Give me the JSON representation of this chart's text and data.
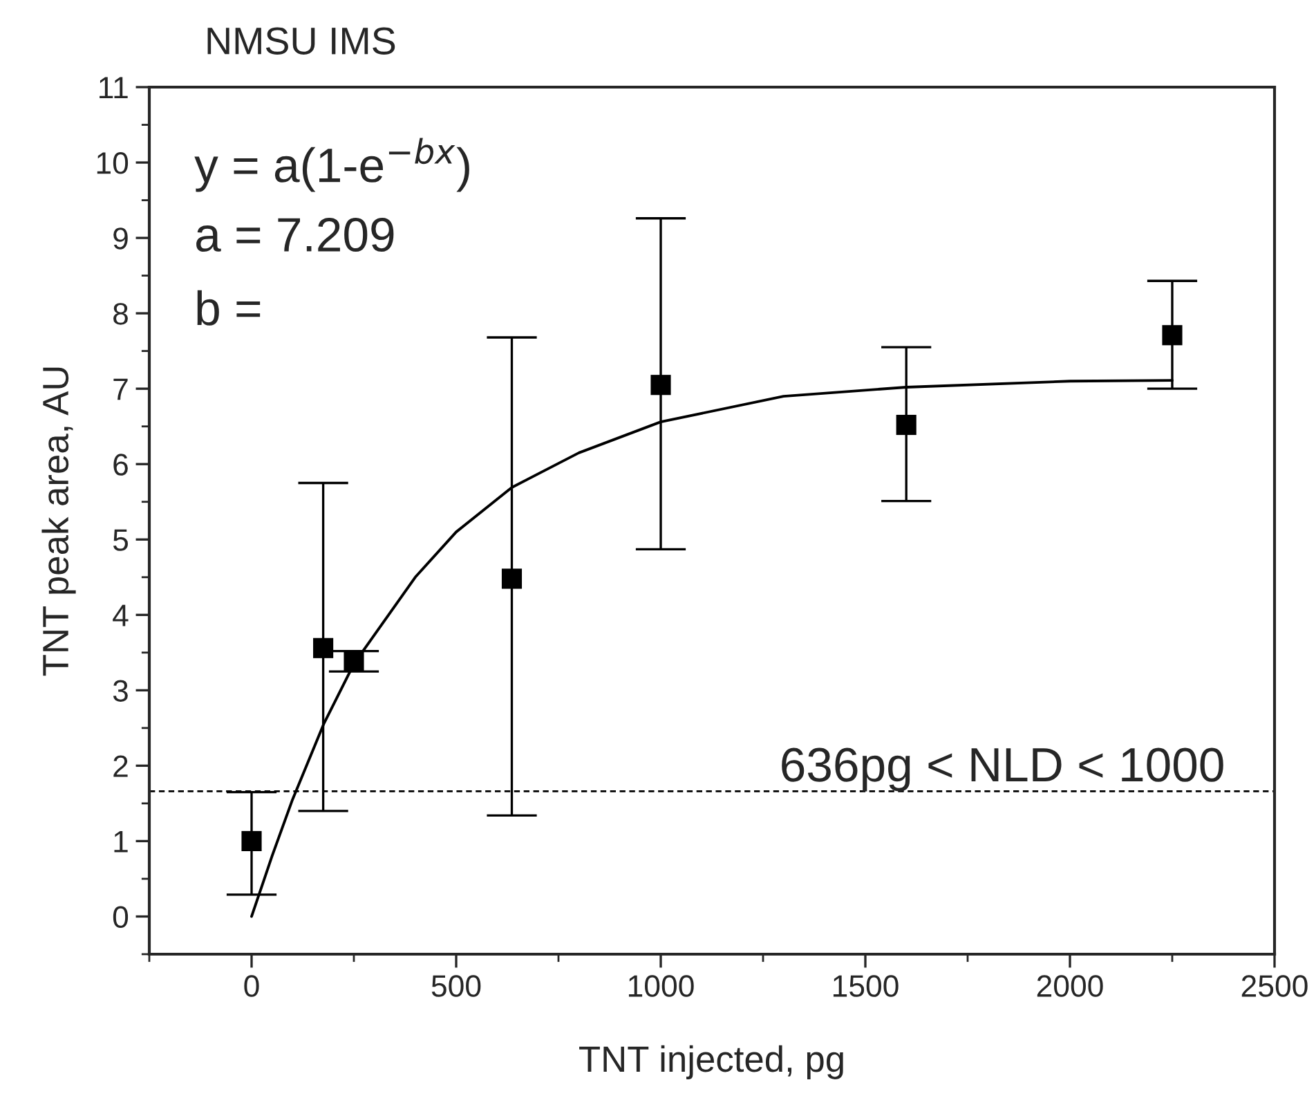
{
  "chart_data": {
    "type": "scatter",
    "title": "NMSU IMS",
    "xlabel": "TNT injected, pg",
    "ylabel": "TNT peak area, AU",
    "xlim": [
      -250,
      2500
    ],
    "xticks": [
      0,
      500,
      1000,
      1500,
      2000,
      2500
    ],
    "ylim": [
      -0.5,
      11
    ],
    "yticks": [
      0,
      1,
      2,
      3,
      4,
      5,
      6,
      7,
      8,
      9,
      10,
      11
    ],
    "grid": false,
    "legend": false,
    "series": [
      {
        "color": "#000000",
        "marker": "square",
        "x": [
          0,
          175,
          250,
          636,
          1000,
          1600,
          2250
        ],
        "values": [
          1.0,
          3.56,
          3.38,
          4.48,
          7.05,
          6.52,
          7.71
        ],
        "errors": [
          [
            0.29,
            1.65
          ],
          [
            1.4,
            5.75
          ],
          [
            3.25,
            3.52
          ],
          [
            1.34,
            7.68
          ],
          [
            4.87,
            9.26
          ],
          [
            5.51,
            7.55
          ],
          [
            7.0,
            8.43
          ]
        ]
      },
      {
        "type": "line",
        "color": "#000000",
        "marker": "none",
        "line_style": "solid",
        "x": [
          0,
          50,
          100,
          176,
          250,
          400,
          500,
          636,
          800,
          1000,
          1300,
          1600,
          2000,
          2250
        ],
        "values": [
          0,
          0.8,
          1.55,
          2.55,
          3.35,
          4.5,
          5.1,
          5.69,
          6.15,
          6.56,
          6.9,
          7.02,
          7.1,
          7.11
        ]
      }
    ],
    "ref_lines": [
      {
        "axis": "y",
        "value": 1.66,
        "label": "636pg < NLD < 1000",
        "color": "#000000",
        "line_style": "dashed"
      }
    ],
    "annotations": [
      "y = a(1-e$^{−bx}$)",
      "a = 7.209",
      "b ="
    ]
  }
}
